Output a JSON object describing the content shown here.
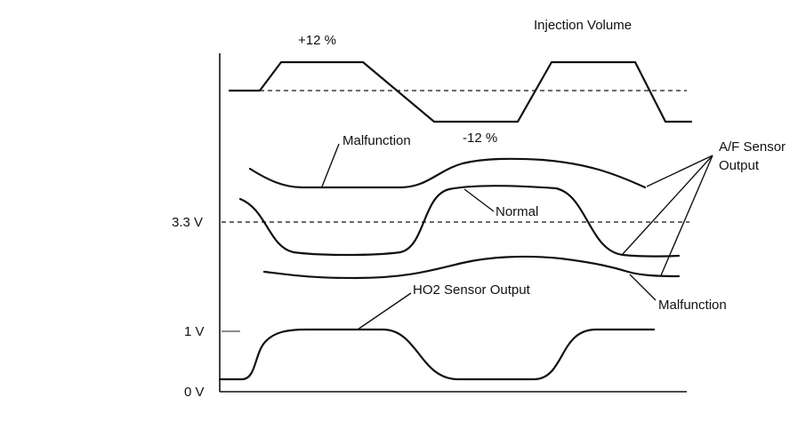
{
  "labels": {
    "injection_volume": "Injection Volume",
    "plus_12": "+12 %",
    "minus_12": "-12 %",
    "malfunction_top": "Malfunction",
    "af_sensor_line1": "A/F Sensor",
    "af_sensor_line2": "Output",
    "normal": "Normal",
    "malfunction_bottom": "Malfunction",
    "ho2_sensor_output": "HO2 Sensor Output"
  },
  "axis": {
    "v33": "3.3 V",
    "v1": "1 V",
    "v0": "0 V"
  },
  "colors": {
    "line": "#111111",
    "background": "#ffffff"
  }
}
